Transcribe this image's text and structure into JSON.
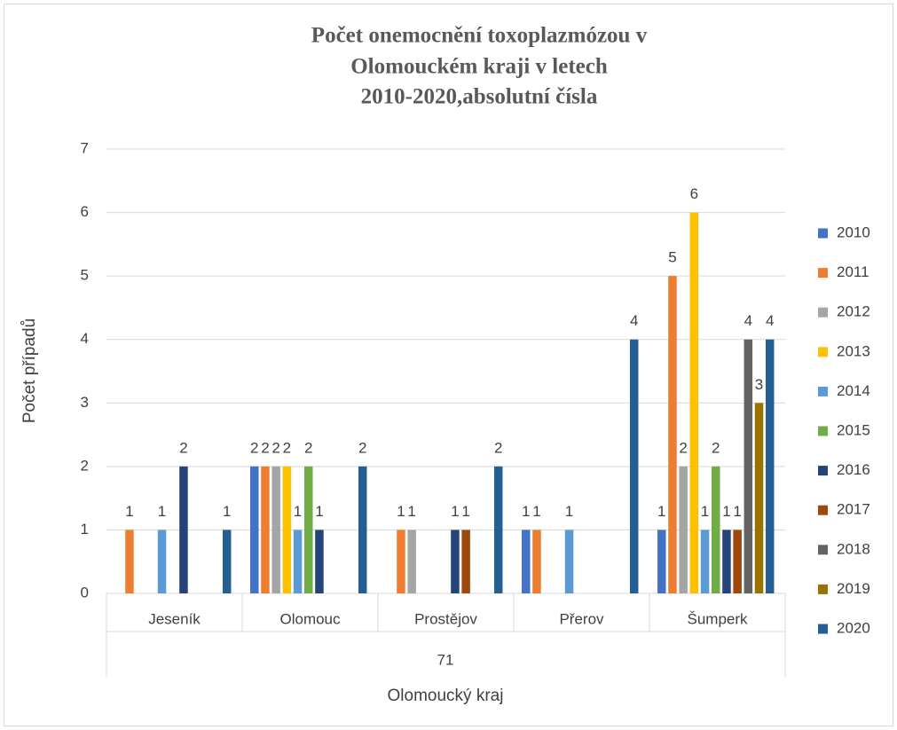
{
  "chart_data": {
    "type": "bar",
    "title": [
      "Počet onemocnění toxoplazmózou v",
      "Olomouckém kraji v letech",
      "2010-2020,absolutní čísla"
    ],
    "y_label": "Počet případů",
    "x_label": "Olomoucký kraj",
    "category_group": "71",
    "categories": [
      "Jeseník",
      "Olomouc",
      "Prostějov",
      "Přerov",
      "Šumperk"
    ],
    "ylim": [
      0,
      7
    ],
    "yticks": [
      0,
      1,
      2,
      3,
      4,
      5,
      6,
      7
    ],
    "grid": true,
    "legend": "right",
    "series": [
      {
        "name": "2010",
        "color": "#4472c4",
        "values": [
          null,
          2,
          null,
          1,
          1
        ]
      },
      {
        "name": "2011",
        "color": "#ed7d31",
        "values": [
          1,
          2,
          1,
          1,
          5
        ]
      },
      {
        "name": "2012",
        "color": "#a5a5a5",
        "values": [
          null,
          2,
          1,
          null,
          2
        ]
      },
      {
        "name": "2013",
        "color": "#ffc000",
        "values": [
          null,
          2,
          null,
          null,
          6
        ]
      },
      {
        "name": "2014",
        "color": "#5b9bd5",
        "values": [
          1,
          1,
          null,
          1,
          1
        ]
      },
      {
        "name": "2015",
        "color": "#70ad47",
        "values": [
          null,
          2,
          null,
          null,
          2
        ]
      },
      {
        "name": "2016",
        "color": "#264478",
        "values": [
          2,
          1,
          1,
          null,
          1
        ]
      },
      {
        "name": "2017",
        "color": "#9e480e",
        "values": [
          null,
          null,
          1,
          null,
          1
        ]
      },
      {
        "name": "2018",
        "color": "#636363",
        "values": [
          null,
          null,
          null,
          null,
          4
        ]
      },
      {
        "name": "2019",
        "color": "#997300",
        "values": [
          null,
          null,
          null,
          null,
          3
        ]
      },
      {
        "name": "2020",
        "color": "#255e91",
        "values": [
          1,
          2,
          2,
          4,
          4
        ]
      }
    ]
  }
}
